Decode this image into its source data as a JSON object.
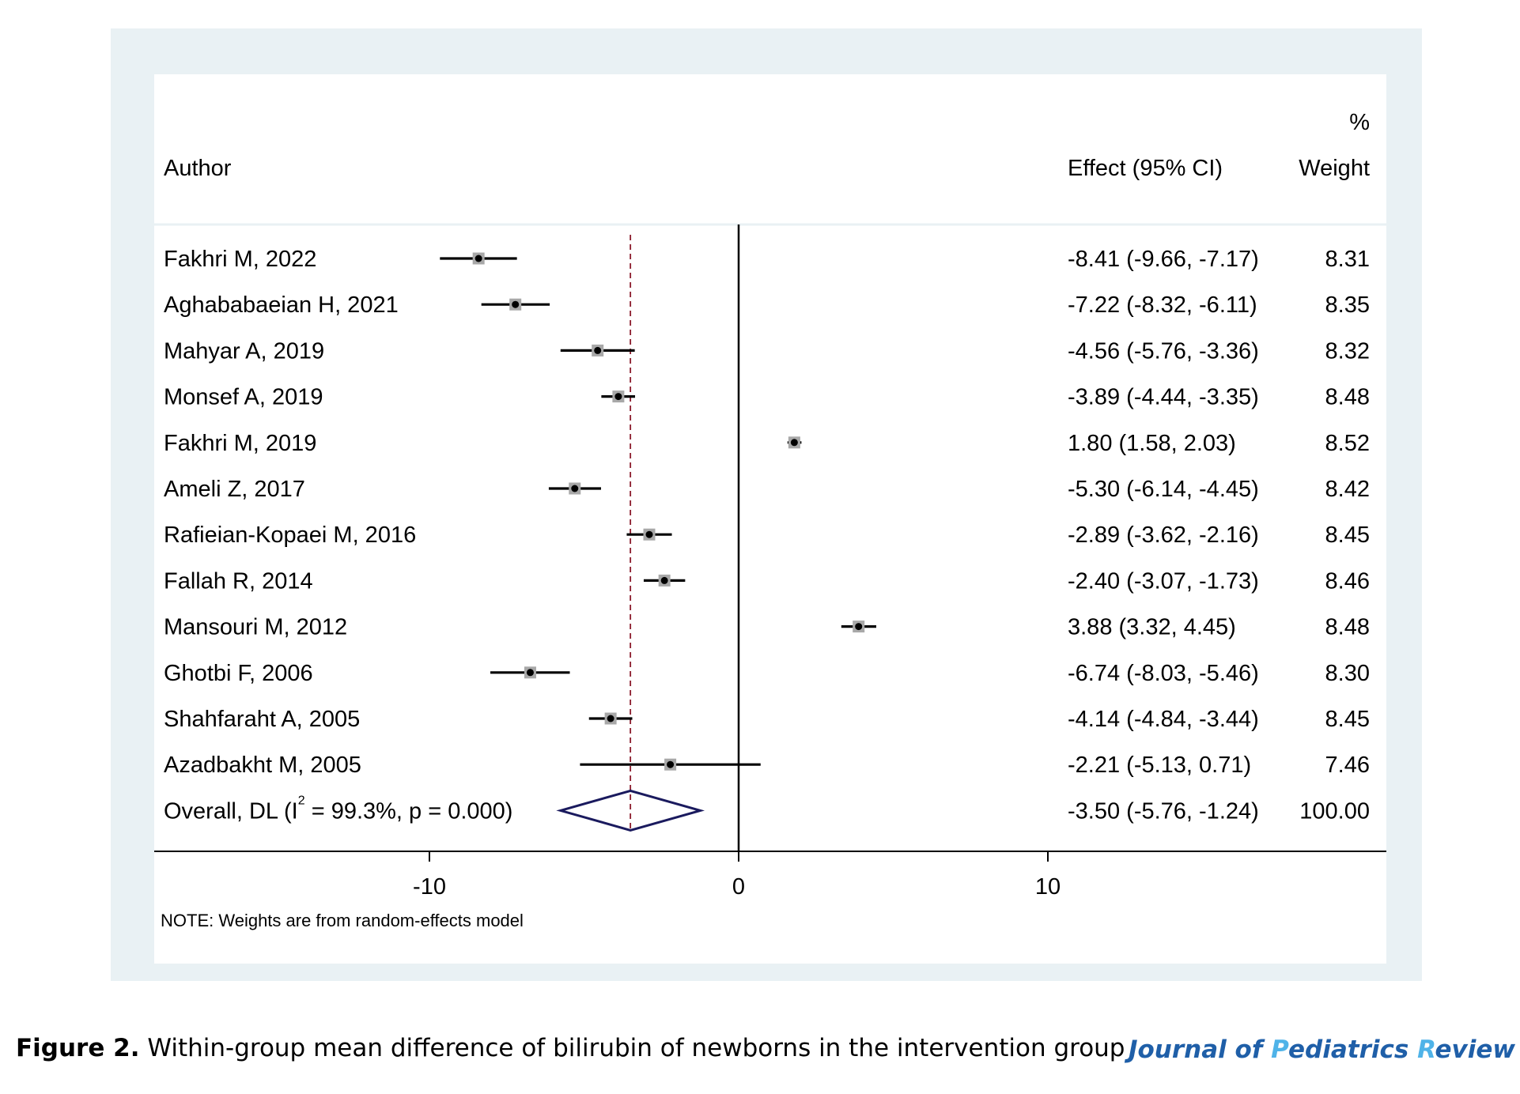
{
  "figure_caption": {
    "label": "Figure 2.",
    "text": " Within-group mean difference of bilirubin of newborns in the intervention group"
  },
  "journal_logo": {
    "parts": [
      {
        "text": "Journal of ",
        "accent": false
      },
      {
        "text": "P",
        "accent": true
      },
      {
        "text": "ediatrics ",
        "accent": false
      },
      {
        "text": "R",
        "accent": true
      },
      {
        "text": "eview",
        "accent": false
      }
    ]
  },
  "chart_data": {
    "type": "forest",
    "column_headers": {
      "author": "Author",
      "effect": "Effect (95% CI)",
      "weight_top": "%",
      "weight": "Weight"
    },
    "x_ticks": [
      -10,
      0,
      10
    ],
    "xlim": [
      -19,
      21
    ],
    "null_line": 0,
    "overall_line": -3.5,
    "studies": [
      {
        "author": "Fakhri M, 2022",
        "effect": -8.41,
        "lower": -9.66,
        "upper": -7.17,
        "effect_text": "-8.41 (-9.66, -7.17)",
        "weight": "8.31"
      },
      {
        "author": "Aghababaeian H, 2021",
        "effect": -7.22,
        "lower": -8.32,
        "upper": -6.11,
        "effect_text": "-7.22 (-8.32, -6.11)",
        "weight": "8.35"
      },
      {
        "author": "Mahyar A, 2019",
        "effect": -4.56,
        "lower": -5.76,
        "upper": -3.36,
        "effect_text": "-4.56 (-5.76, -3.36)",
        "weight": "8.32"
      },
      {
        "author": "Monsef A, 2019",
        "effect": -3.89,
        "lower": -4.44,
        "upper": -3.35,
        "effect_text": "-3.89 (-4.44, -3.35)",
        "weight": "8.48"
      },
      {
        "author": "Fakhri M, 2019",
        "effect": 1.8,
        "lower": 1.58,
        "upper": 2.03,
        "effect_text": "1.80 (1.58, 2.03)",
        "weight": "8.52"
      },
      {
        "author": "Ameli Z, 2017",
        "effect": -5.3,
        "lower": -6.14,
        "upper": -4.45,
        "effect_text": "-5.30 (-6.14, -4.45)",
        "weight": "8.42"
      },
      {
        "author": "Rafieian-Kopaei M, 2016",
        "effect": -2.89,
        "lower": -3.62,
        "upper": -2.16,
        "effect_text": "-2.89 (-3.62, -2.16)",
        "weight": "8.45"
      },
      {
        "author": "Fallah R, 2014",
        "effect": -2.4,
        "lower": -3.07,
        "upper": -1.73,
        "effect_text": "-2.40 (-3.07, -1.73)",
        "weight": "8.46"
      },
      {
        "author": "Mansouri M, 2012",
        "effect": 3.88,
        "lower": 3.32,
        "upper": 4.45,
        "effect_text": "3.88 (3.32, 4.45)",
        "weight": "8.48"
      },
      {
        "author": "Ghotbi F, 2006",
        "effect": -6.74,
        "lower": -8.03,
        "upper": -5.46,
        "effect_text": "-6.74 (-8.03, -5.46)",
        "weight": "8.30"
      },
      {
        "author": "Shahfaraht A, 2005",
        "effect": -4.14,
        "lower": -4.84,
        "upper": -3.44,
        "effect_text": "-4.14 (-4.84, -3.44)",
        "weight": "8.45"
      },
      {
        "author": "Azadbakht M, 2005",
        "effect": -2.21,
        "lower": -5.13,
        "upper": 0.71,
        "effect_text": "-2.21 (-5.13, 0.71)",
        "weight": "7.46"
      }
    ],
    "overall": {
      "label_prefix": "Overall, DL (I",
      "label_sup": "2",
      "label_suffix": " = 99.3%, p = 0.000)",
      "effect": -3.5,
      "lower": -5.76,
      "upper": -1.24,
      "effect_text": "-3.50 (-5.76, -1.24)",
      "weight": "100.00"
    },
    "note": "NOTE: Weights are from random-effects model",
    "colors": {
      "diamond": "#1a1a5e",
      "overall_line": "#8b1a2b",
      "marker_box": "#a8a8a8"
    }
  }
}
